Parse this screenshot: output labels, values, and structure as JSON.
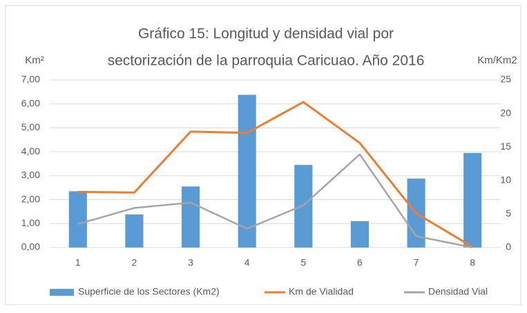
{
  "chart_data": {
    "type": "bar-line",
    "title": [
      "Gráfico 15: Longitud y densidad vial por",
      "sectorización de la parroquia Caricuao. Año 2016"
    ],
    "y_label": "Km²",
    "y2_label": "Km/Km2",
    "categories": [
      "1",
      "2",
      "3",
      "4",
      "5",
      "6",
      "7",
      "8"
    ],
    "series": [
      {
        "name": "Superficie de los Sectores (Km2)",
        "type": "bar",
        "color": "#5b9bd5",
        "axis": "y",
        "values": [
          2.35,
          1.38,
          2.55,
          6.38,
          3.45,
          1.1,
          2.88,
          3.95
        ]
      },
      {
        "name": "Km de Vialidad",
        "type": "line",
        "color": "#ed7d31",
        "axis": "y2",
        "values": [
          8.3,
          8.2,
          17.3,
          17.1,
          21.7,
          15.6,
          5.1,
          0.1
        ]
      },
      {
        "name": "Densidad Vial",
        "type": "line",
        "color": "#a5a5a5",
        "axis": "y2",
        "values": [
          3.5,
          5.9,
          6.7,
          2.8,
          6.3,
          13.9,
          1.7,
          0
        ]
      }
    ],
    "ylim": [
      0,
      7
    ],
    "yticks": [
      {
        "value": 0,
        "label": "0,00"
      },
      {
        "value": 1,
        "label": "1,00"
      },
      {
        "value": 2,
        "label": "2,00"
      },
      {
        "value": 3,
        "label": "3,00"
      },
      {
        "value": 4,
        "label": "4,00"
      },
      {
        "value": 5,
        "label": "5,00"
      },
      {
        "value": 6,
        "label": "6,00"
      },
      {
        "value": 7,
        "label": "7,00"
      }
    ],
    "y2lim": [
      0,
      25
    ],
    "y2ticks": [
      0,
      5,
      10,
      15,
      20,
      25
    ],
    "grid": true,
    "legend": "bottom"
  }
}
